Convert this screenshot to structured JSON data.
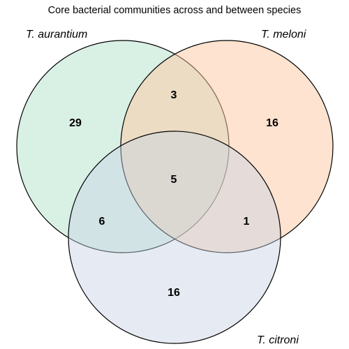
{
  "diagram": {
    "title": "Core bacterial communities across and between species",
    "sets": [
      {
        "id": "aurantium",
        "label": "T. aurantium",
        "color": "#9fd9bd"
      },
      {
        "id": "meloni",
        "label": "T. meloni",
        "color": "#fdc7a2"
      },
      {
        "id": "citroni",
        "label": "T. citroni",
        "color": "#c8d3e4"
      }
    ],
    "regions": {
      "aurantium_only": "29",
      "meloni_only": "16",
      "citroni_only": "16",
      "aurantium_meloni": "3",
      "aurantium_citroni": "6",
      "meloni_citroni": "1",
      "all_three": "5"
    }
  }
}
